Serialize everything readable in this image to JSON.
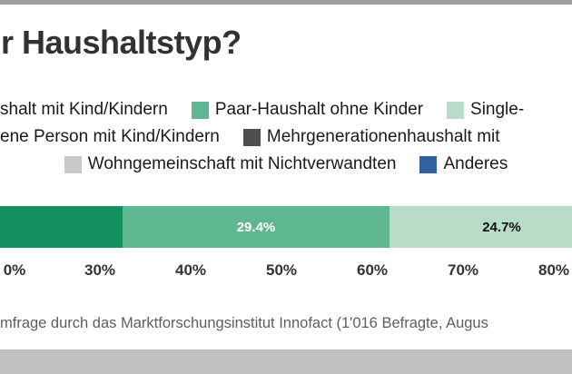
{
  "frame": {
    "top_border_color": "#9e9e9e",
    "bottom_band_color": "#c0c0c0",
    "background_color": "#ffffff"
  },
  "header": {
    "title": "r Haushaltstyp?"
  },
  "legend": {
    "row1": {
      "item1": {
        "label": "shalt mit Kind/Kindern"
      },
      "item2": {
        "label": "Paar-Haushalt ohne Kinder",
        "color": "#5fb791"
      },
      "item3": {
        "label": "Single-",
        "color": "#b9dcc9"
      }
    },
    "row2": {
      "item1": {
        "label": "ene Person mit Kind/Kindern"
      },
      "item2": {
        "label": "Mehrgenerationenhaushalt mit",
        "color": "#4f4f4f"
      }
    },
    "row3": {
      "item1": {
        "label": "Wohngemeinschaft mit Nichtverwandten",
        "color": "#c9c9c9"
      },
      "item2": {
        "label": "Anderes",
        "color": "#33619f"
      }
    }
  },
  "chart_data": {
    "type": "bar",
    "orientation": "horizontal-stacked",
    "title": "r Haushaltstyp?",
    "segments": [
      {
        "name": "left-segment-dark-green",
        "color": "#129060",
        "label": ""
      },
      {
        "name": "middle-segment-medium-green",
        "color": "#5fb791",
        "label": "29.4%",
        "value": 29.4
      },
      {
        "name": "right-segment-light-green",
        "color": "#b9dcc9",
        "label": "24.7%",
        "value": 24.7
      }
    ],
    "x_axis_ticks": [
      "0%",
      "30%",
      "40%",
      "50%",
      "60%",
      "70%",
      "80%"
    ],
    "grid": "off",
    "legend_position": "top"
  },
  "source": {
    "text": "mfrage durch das Marktforschungsinstitut Innofact (1'016 Befragte, Augus"
  }
}
